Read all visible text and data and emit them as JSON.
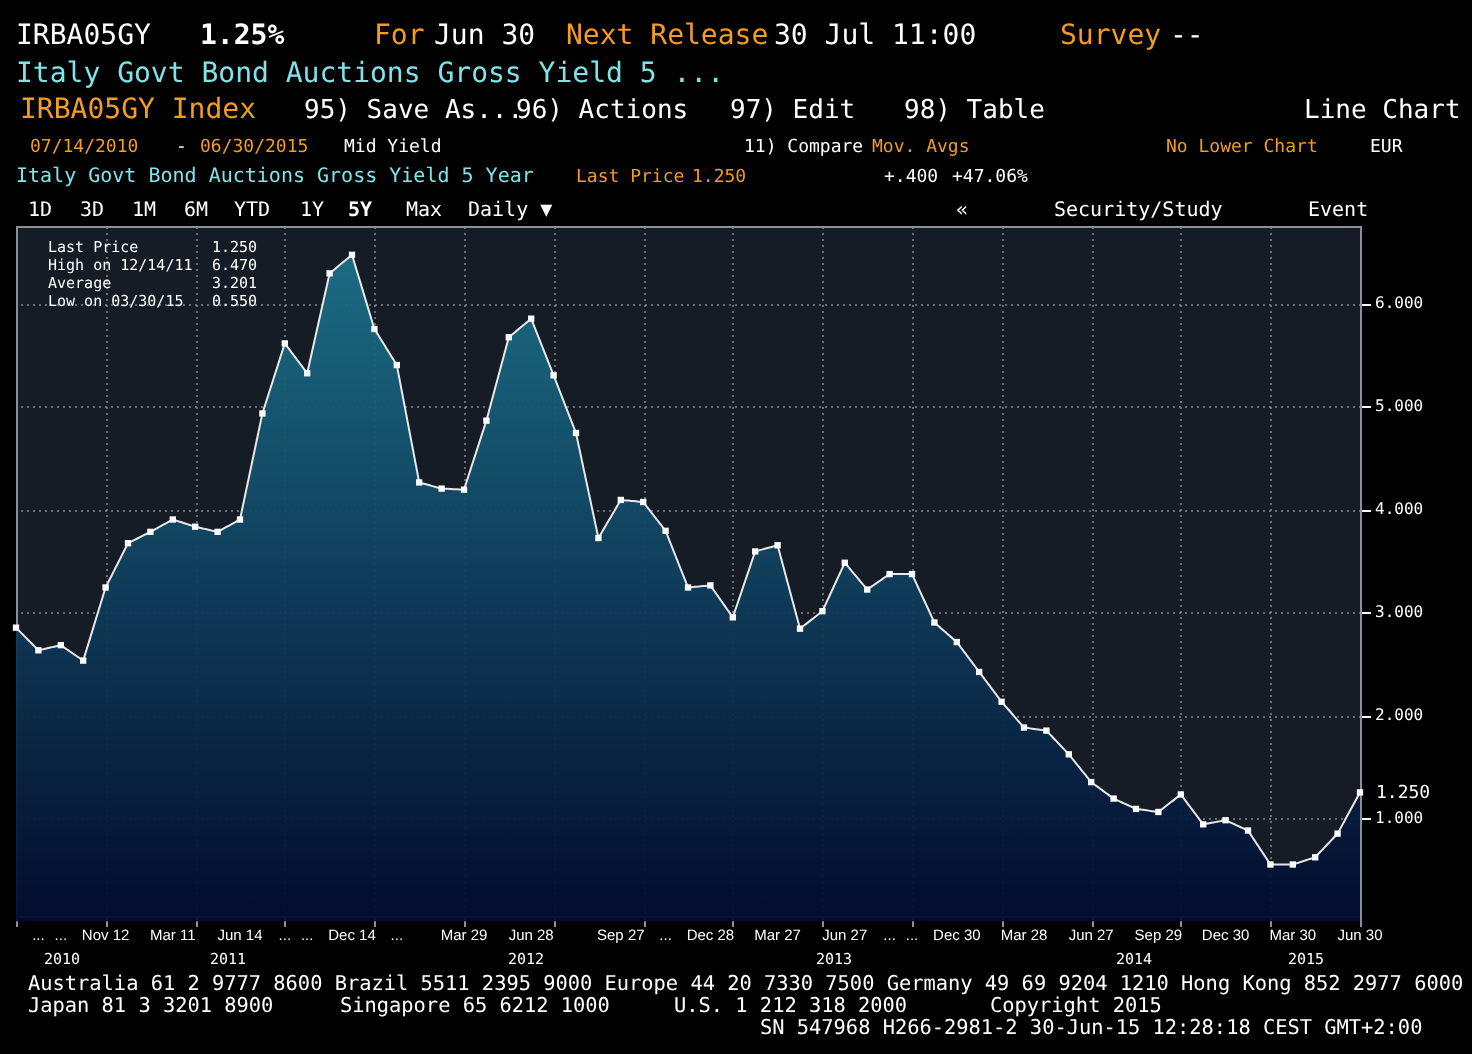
{
  "chart_data": {
    "type": "area",
    "title": "Italy Govt Bond Auctions Gross Yield 5 Year",
    "categories": [
      null,
      "...",
      "...",
      null,
      "Nov 12",
      null,
      null,
      "Mar 11",
      null,
      null,
      "Jun 14",
      null,
      "...",
      "...",
      null,
      "Dec 14",
      null,
      "...",
      null,
      null,
      "Mar 29",
      null,
      null,
      "Jun 28",
      null,
      null,
      null,
      "Sep 27",
      null,
      "...",
      null,
      "Dec 28",
      null,
      null,
      "Mar 27",
      null,
      null,
      "Jun 27",
      null,
      "...",
      "...",
      null,
      "Dec 30",
      null,
      null,
      "Mar 28",
      null,
      null,
      "Jun 27",
      null,
      null,
      "Sep 29",
      null,
      null,
      "Dec 30",
      null,
      null,
      "Mar 30",
      null,
      null,
      "Jun 30"
    ],
    "series": [
      {
        "name": "Last Price",
        "color": "#1b7088",
        "values": [
          2.85,
          2.63,
          2.68,
          2.53,
          3.24,
          3.67,
          3.78,
          3.9,
          3.83,
          3.78,
          3.9,
          4.93,
          5.61,
          5.32,
          6.29,
          6.47,
          5.75,
          5.4,
          4.26,
          4.2,
          4.19,
          4.86,
          5.67,
          5.85,
          5.3,
          4.74,
          3.72,
          4.09,
          4.07,
          3.79,
          3.24,
          3.26,
          2.95,
          3.59,
          3.65,
          2.84,
          3.01,
          3.48,
          3.22,
          3.37,
          3.37,
          2.9,
          2.71,
          2.42,
          2.13,
          1.88,
          1.85,
          1.62,
          1.35,
          1.19,
          1.09,
          1.06,
          1.23,
          0.94,
          0.98,
          0.88,
          0.55,
          0.55,
          0.62,
          0.85,
          1.25
        ],
        "value_labels": [
          null,
          null,
          null,
          null,
          null,
          null,
          null,
          null,
          null,
          null,
          null,
          null,
          null,
          null,
          null,
          null,
          null,
          null,
          null,
          null,
          null,
          null,
          null,
          null,
          null,
          null,
          null,
          null,
          null,
          null,
          null,
          null,
          null,
          null,
          null,
          null,
          null,
          null,
          null,
          null,
          null,
          null,
          null,
          null,
          null,
          null,
          null,
          null,
          null,
          null,
          null,
          null,
          null,
          null,
          null,
          null,
          null,
          null,
          null,
          null,
          "1.250"
        ]
      }
    ],
    "ylim": [
      0.05,
      6.75
    ],
    "yticks": [
      {
        "value": 1,
        "label": "1.000"
      },
      {
        "value": 2,
        "label": "2.000"
      },
      {
        "value": 3,
        "label": "3.000"
      },
      {
        "value": 4,
        "label": "4.000"
      },
      {
        "value": 5,
        "label": "5.000"
      },
      {
        "value": 6,
        "label": "6.000"
      }
    ],
    "grid": true,
    "marker": "square",
    "line_style": "solid",
    "legend": "top left",
    "annotations": [
      "IRBA05GY",
      "1.25%",
      "For",
      "Jun 30",
      "Next Release",
      "30 Jul 11:00",
      "Survey",
      "--",
      "Italy Govt Bond Auctions Gross Yield 5 ...",
      "IRBA05GY Index",
      "95) Save As...",
      "96) Actions",
      "97) Edit",
      "98) Table",
      "Line Chart",
      "07/14/2010",
      "-",
      "06/30/2015",
      "Mid Yield",
      "11) Compare",
      "Mov. Avgs",
      "No Lower Chart",
      "EUR",
      "Last Price",
      "1.250",
      "+.400",
      "+47.06%",
      "1D",
      "3D",
      "1M",
      "6M",
      "YTD",
      "1Y",
      "5Y",
      "Max",
      "Daily ▼",
      "«",
      "Security/Study",
      "Event",
      "1.250",
      "High on 12/14/11",
      "6.470",
      "Average",
      "3.201",
      "Low on 03/30/15",
      "0.550",
      "2010",
      "2011",
      "2012",
      "2013",
      "2014",
      "2015",
      "Australia 61 2 9777 8600 Brazil 5511 2395 9000 Europe 44 20 7330 7500 Germany 49 69 9204 1210 Hong Kong 852 2977 6000",
      "Japan 81 3 3201 8900",
      "Singapore 65 6212 1000",
      "U.S. 1 212 318 2000",
      "Copyright 2015",
      "SN 547968 H266-2981-2 30-Jun-15 12:28:18 CEST GMT+2:00"
    ]
  }
}
